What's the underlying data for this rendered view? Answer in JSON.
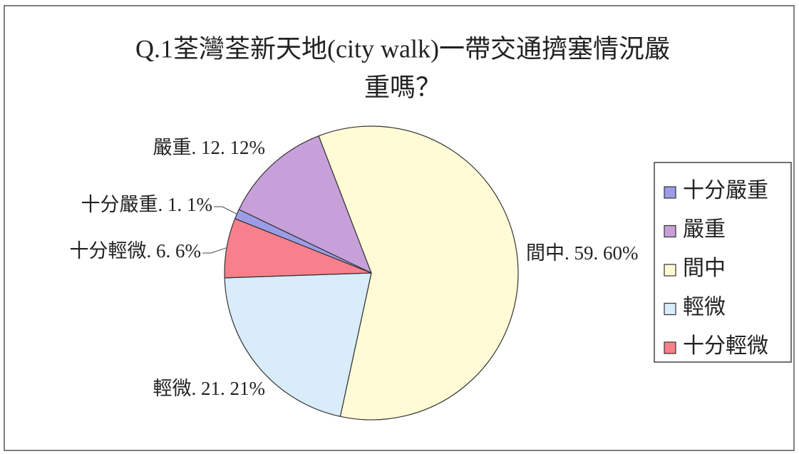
{
  "chart_data": {
    "type": "pie",
    "title": [
      "Q.1荃灣荃新天地(city walk)一帶交通擠塞情況嚴",
      "重嗎？"
    ],
    "categories": [
      "十分嚴重",
      "嚴重",
      "間中",
      "輕微",
      "十分輕微"
    ],
    "values": [
      1.1,
      12.12,
      59.6,
      21.21,
      6.6
    ],
    "value_labels": [
      "十分嚴重. 1. 1%",
      "嚴重. 12. 12%",
      "間中. 59. 60%",
      "輕微. 21. 21%",
      "十分輕微. 6. 6%"
    ],
    "colors": [
      "#9c9ce6",
      "#c7a0d9",
      "#fffbd6",
      "#d8ecfa",
      "#f7808c"
    ],
    "legend": "right"
  }
}
